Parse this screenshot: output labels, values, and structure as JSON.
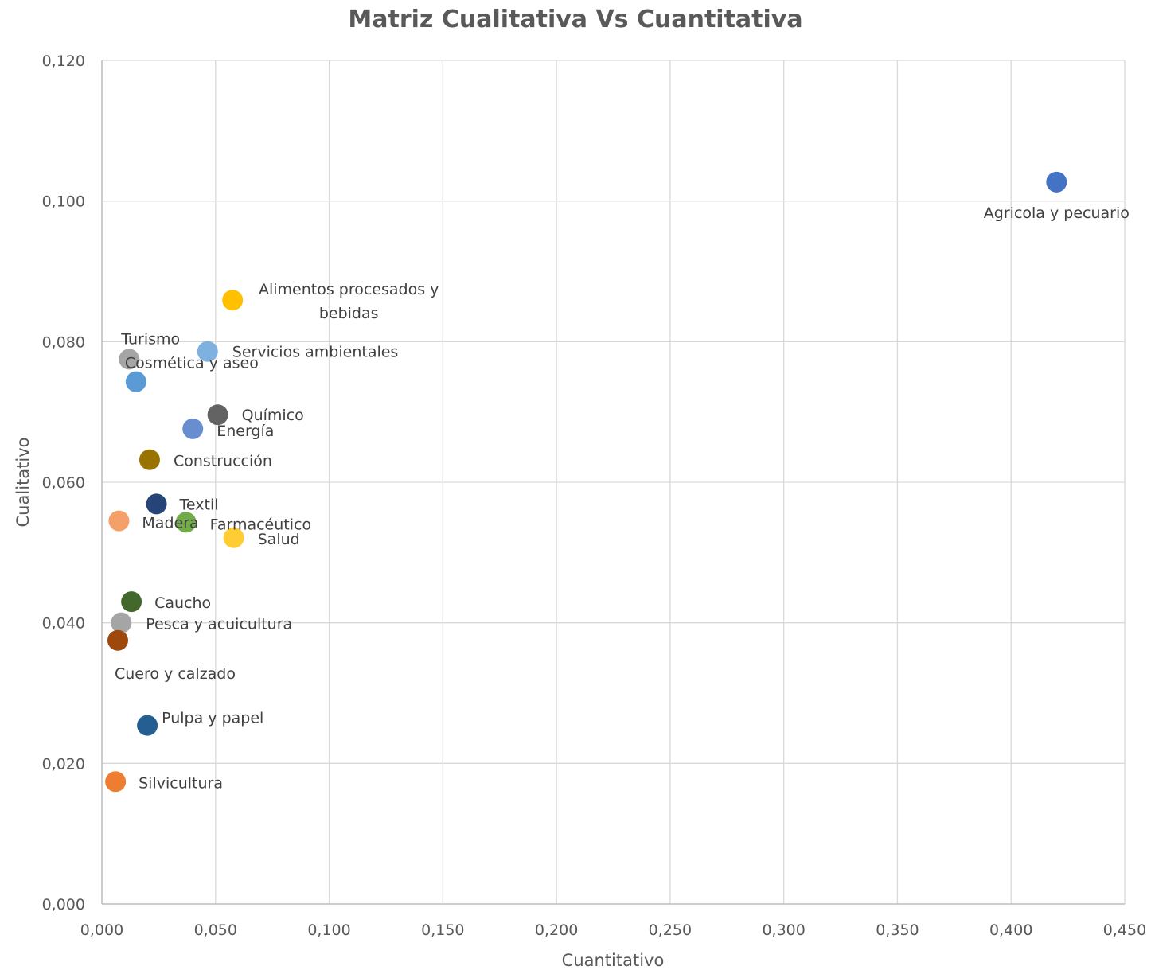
{
  "chart_data": {
    "type": "scatter",
    "title": "Matriz Cualitativa Vs Cuantitativa",
    "xlabel": "Cuantitativo",
    "ylabel": "Cualitativo",
    "xlim": [
      0,
      0.45
    ],
    "ylim": [
      0,
      0.12
    ],
    "x_ticks": [
      "0,000",
      "0,050",
      "0,100",
      "0,150",
      "0,200",
      "0,250",
      "0,300",
      "0,350",
      "0,400",
      "0,450"
    ],
    "y_ticks": [
      "0,000",
      "0,020",
      "0,040",
      "0,060",
      "0,080",
      "0,100",
      "0,120"
    ],
    "grid": true,
    "legend": "none",
    "points": [
      {
        "label": "Agricola y pecuario",
        "x": 0.42,
        "y": 0.1027,
        "color": "#4472C4"
      },
      {
        "label": "Alimentos procesados y bebidas",
        "label_lines": [
          "Alimentos procesados y",
          "bebidas"
        ],
        "x": 0.0575,
        "y": 0.0859,
        "color": "#FFC000"
      },
      {
        "label": "Servicios ambientales",
        "x": 0.0465,
        "y": 0.0786,
        "color": "#7EB0E0"
      },
      {
        "label": "Turismo",
        "x": 0.012,
        "y": 0.0775,
        "color": "#A5A5A5"
      },
      {
        "label": "Cosmética y aseo",
        "x": 0.015,
        "y": 0.0743,
        "color": "#5B9BD5"
      },
      {
        "label": "Químico",
        "x": 0.051,
        "y": 0.0696,
        "color": "#636363"
      },
      {
        "label": "Energía",
        "x": 0.04,
        "y": 0.0676,
        "color": "#698ED0"
      },
      {
        "label": "Construcción",
        "x": 0.021,
        "y": 0.0632,
        "color": "#997300"
      },
      {
        "label": "Textil",
        "x": 0.024,
        "y": 0.0569,
        "color": "#264478"
      },
      {
        "label": "Madera",
        "x": 0.0075,
        "y": 0.0545,
        "color": "#F4A06A"
      },
      {
        "label": "Farmacéutico",
        "x": 0.037,
        "y": 0.0543,
        "color": "#70AD47"
      },
      {
        "label": "Salud",
        "x": 0.058,
        "y": 0.0521,
        "color": "#FFCD33"
      },
      {
        "label": "Caucho",
        "x": 0.013,
        "y": 0.043,
        "color": "#43682B"
      },
      {
        "label": "Pesca y acuicultura",
        "x": 0.0085,
        "y": 0.04,
        "color": "#A5A5A5"
      },
      {
        "label": "Cuero y calzado",
        "x": 0.007,
        "y": 0.0375,
        "color": "#9E480E"
      },
      {
        "label": "Pulpa y papel",
        "x": 0.02,
        "y": 0.0254,
        "color": "#255E91"
      },
      {
        "label": "Silvicultura",
        "x": 0.006,
        "y": 0.0174,
        "color": "#ED7D31"
      }
    ]
  }
}
